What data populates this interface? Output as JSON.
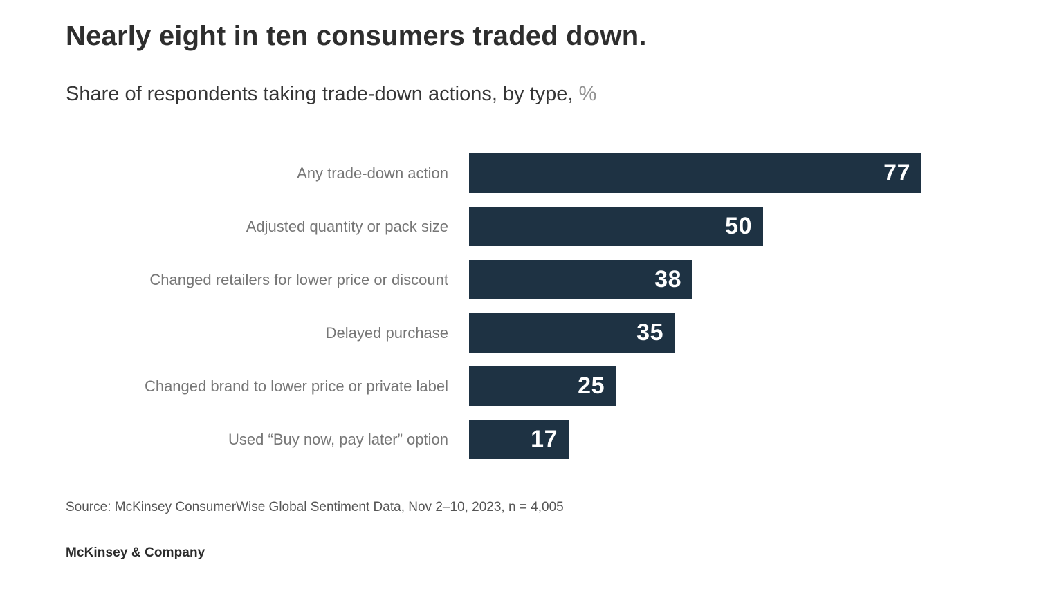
{
  "page": {
    "title": "Nearly eight in ten consumers traded down.",
    "subtitle": "Share of respondents taking trade-down actions, by type,",
    "subtitle_unit": "%",
    "source": "Source: McKinsey ConsumerWise Global Sentiment Data, Nov 2–10, 2023, n = 4,005",
    "footer_logo": "McKinsey & Company"
  },
  "chart_data": {
    "type": "bar",
    "orientation": "horizontal",
    "title": "Nearly eight in ten consumers traded down.",
    "subtitle": "Share of respondents taking trade-down actions, by type, %",
    "unit": "%",
    "categories": [
      "Any trade-down action",
      "Adjusted quantity or pack size",
      "Changed retailers for lower price or discount",
      "Delayed purchase",
      "Changed brand to lower price or private label",
      "Used “Buy now, pay later” option"
    ],
    "values": [
      77,
      50,
      38,
      35,
      25,
      17
    ],
    "xlim": [
      0,
      77
    ],
    "grid": false,
    "legend": false,
    "value_labels": "inside-end",
    "bar_color": "#1e3243",
    "value_label_color": "#ffffff",
    "category_label_color": "#767676"
  }
}
